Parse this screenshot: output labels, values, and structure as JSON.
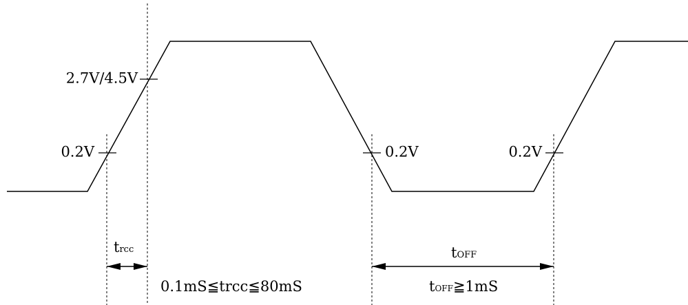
{
  "labels": {
    "threshold_high": "2.7V/4.5V",
    "threshold_low_rise": "0.2V",
    "threshold_low_fall": "0.2V",
    "threshold_low_rise2": "0.2V",
    "trcc_t": "t",
    "trcc_sub": "rcc",
    "toff_t": "t",
    "toff_sub": "OFF",
    "trcc_constraint": "0.1mS≦trcc≦80mS",
    "toff_constraint_t": "t",
    "toff_constraint_sub": "OFF",
    "toff_constraint_rest": "≧1mS"
  }
}
